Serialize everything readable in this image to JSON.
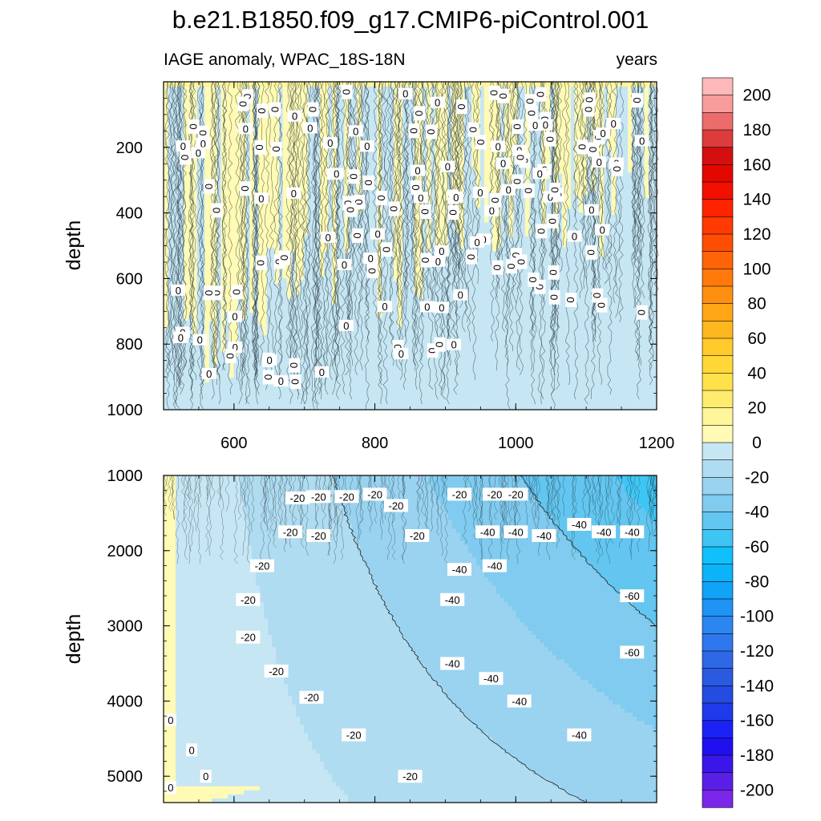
{
  "chart_data": {
    "type": "heatmap",
    "title": "b.e21.B1850.f09_g17.CMIP6-piControl.001",
    "subtitle_left": "IAGE anomaly, WPAC_18S-18N",
    "subtitle_right": "years",
    "colorbar": {
      "levels": [
        -210,
        -200,
        -190,
        -180,
        -170,
        -160,
        -150,
        -140,
        -130,
        -120,
        -110,
        -100,
        -90,
        -80,
        -70,
        -60,
        -50,
        -40,
        -30,
        -20,
        -10,
        0,
        10,
        20,
        30,
        40,
        50,
        60,
        70,
        80,
        90,
        100,
        110,
        120,
        130,
        140,
        150,
        160,
        170,
        180,
        190,
        200,
        210
      ],
      "colors": [
        "#7b27ea",
        "#5a1fe6",
        "#3a16e8",
        "#1f10f0",
        "#1b22f5",
        "#1f3ae9",
        "#244ce0",
        "#2a5ae0",
        "#2e68e6",
        "#2f77ec",
        "#2c86f1",
        "#1f94f5",
        "#10a3f8",
        "#0bb3f8",
        "#10c0fa",
        "#3fc5f4",
        "#62c6f0",
        "#80cbef",
        "#99d3f0",
        "#b0dcf1",
        "#c6e6f4",
        "#fffab4",
        "#fff59a",
        "#ffec6e",
        "#ffe24a",
        "#ffd838",
        "#ffca2a",
        "#ffb71f",
        "#ffa516",
        "#ff8f10",
        "#ff7a0a",
        "#ff6406",
        "#ff4e04",
        "#ff3a02",
        "#ff2400",
        "#f41000",
        "#e20800",
        "#d40f0f",
        "#dc3c3c",
        "#ec6c6c",
        "#f89b9b",
        "#fdb8b8"
      ],
      "tick_labels": [
        "200",
        "180",
        "160",
        "140",
        "120",
        "100",
        "80",
        "60",
        "40",
        "20",
        "0",
        "-20",
        "-40",
        "-60",
        "-80",
        "-100",
        "-120",
        "-140",
        "-160",
        "-180",
        "-200"
      ]
    },
    "panels": [
      {
        "name": "upper",
        "xlim": [
          500,
          1200
        ],
        "ylim": [
          0,
          1000
        ],
        "ylabel": "depth",
        "x_tick_labels": [
          "600",
          "800",
          "1000",
          "1200"
        ],
        "y_tick_labels": [
          "200",
          "400",
          "600",
          "800",
          "1000"
        ],
        "contour_label": "0"
      },
      {
        "name": "lower",
        "xlim": [
          500,
          1200
        ],
        "ylim": [
          1000,
          5350
        ],
        "ylabel": "depth",
        "y_tick_labels": [
          "1000",
          "2000",
          "3000",
          "4000",
          "5000"
        ],
        "contour_labels": [
          {
            "text": "-20",
            "x": 690,
            "y": 1300
          },
          {
            "text": "-20",
            "x": 720,
            "y": 1280
          },
          {
            "text": "-20",
            "x": 760,
            "y": 1280
          },
          {
            "text": "-20",
            "x": 800,
            "y": 1250
          },
          {
            "text": "-20",
            "x": 830,
            "y": 1400
          },
          {
            "text": "-20",
            "x": 680,
            "y": 1750
          },
          {
            "text": "-20",
            "x": 720,
            "y": 1800
          },
          {
            "text": "-20",
            "x": 860,
            "y": 1800
          },
          {
            "text": "-20",
            "x": 640,
            "y": 2200
          },
          {
            "text": "-20",
            "x": 620,
            "y": 2650
          },
          {
            "text": "-20",
            "x": 620,
            "y": 3150
          },
          {
            "text": "-20",
            "x": 660,
            "y": 3600
          },
          {
            "text": "-20",
            "x": 710,
            "y": 3950
          },
          {
            "text": "-20",
            "x": 770,
            "y": 4450
          },
          {
            "text": "-20",
            "x": 850,
            "y": 5000
          },
          {
            "text": "-20",
            "x": 920,
            "y": 1250
          },
          {
            "text": "-20",
            "x": 970,
            "y": 1250
          },
          {
            "text": "-20",
            "x": 1000,
            "y": 1250
          },
          {
            "text": "-40",
            "x": 960,
            "y": 1750
          },
          {
            "text": "-40",
            "x": 1000,
            "y": 1750
          },
          {
            "text": "-40",
            "x": 1040,
            "y": 1800
          },
          {
            "text": "-40",
            "x": 1090,
            "y": 1650
          },
          {
            "text": "-40",
            "x": 1125,
            "y": 1750
          },
          {
            "text": "-40",
            "x": 1165,
            "y": 1750
          },
          {
            "text": "-40",
            "x": 920,
            "y": 2250
          },
          {
            "text": "-40",
            "x": 970,
            "y": 2200
          },
          {
            "text": "-40",
            "x": 910,
            "y": 2650
          },
          {
            "text": "-40",
            "x": 910,
            "y": 3500
          },
          {
            "text": "-40",
            "x": 965,
            "y": 3700
          },
          {
            "text": "-40",
            "x": 1005,
            "y": 4000
          },
          {
            "text": "-40",
            "x": 1090,
            "y": 4450
          },
          {
            "text": "-60",
            "x": 1165,
            "y": 2600
          },
          {
            "text": "-60",
            "x": 1165,
            "y": 3350
          },
          {
            "text": "0",
            "x": 510,
            "y": 4250
          },
          {
            "text": "0",
            "x": 540,
            "y": 4650
          },
          {
            "text": "0",
            "x": 560,
            "y": 5000
          },
          {
            "text": "0",
            "x": 510,
            "y": 5150
          }
        ]
      }
    ]
  }
}
